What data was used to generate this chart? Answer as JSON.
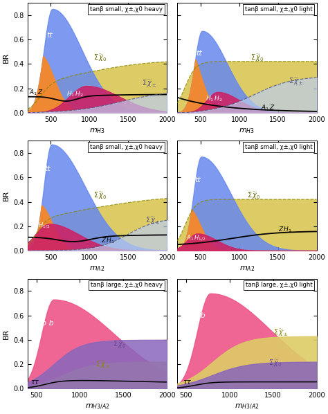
{
  "figsize": [
    4.74,
    5.98
  ],
  "dpi": 100,
  "panels": [
    {
      "title": "tanβ small, χ±,χ0 heavy",
      "xlabel": "m_{H3}",
      "xlim": [
        200,
        2000
      ],
      "ylim": [
        0,
        0.9
      ],
      "yticks": [
        0,
        0.2,
        0.4,
        0.6,
        0.8
      ],
      "xticks": [
        500,
        1000,
        1500,
        2000
      ],
      "scenario": "top_left"
    },
    {
      "title": "tanβ small, χ±,χ0 light",
      "xlabel": "m_{H3}",
      "xlim": [
        200,
        2000
      ],
      "ylim": [
        0,
        0.9
      ],
      "yticks": [
        0,
        0.2,
        0.4,
        0.6,
        0.8
      ],
      "xticks": [
        500,
        1000,
        1500,
        2000
      ],
      "scenario": "top_right"
    },
    {
      "title": "tanβ small, χ±,χ0 heavy",
      "xlabel": "m_{A2}",
      "xlim": [
        200,
        2000
      ],
      "ylim": [
        0,
        0.9
      ],
      "yticks": [
        0,
        0.2,
        0.4,
        0.6,
        0.8
      ],
      "xticks": [
        500,
        1000,
        1500,
        2000
      ],
      "scenario": "mid_left"
    },
    {
      "title": "tanβ small, χ±,χ0 light",
      "xlabel": "m_{A2}",
      "xlim": [
        200,
        2000
      ],
      "ylim": [
        0,
        0.9
      ],
      "yticks": [
        0,
        0.2,
        0.4,
        0.6,
        0.8
      ],
      "xticks": [
        500,
        1000,
        1500,
        2000
      ],
      "scenario": "mid_right"
    },
    {
      "title": "tanβ large, χ±,χ0 heavy",
      "xlabel": "m_{H3/A2}",
      "xlim": [
        400,
        2000
      ],
      "ylim": [
        0,
        0.9
      ],
      "yticks": [
        0,
        0.2,
        0.4,
        0.6,
        0.8
      ],
      "xticks": [
        500,
        1000,
        1500,
        2000
      ],
      "scenario": "bot_left"
    },
    {
      "title": "tanβ large, χ±,χ0 light",
      "xlabel": "m_{H3/A2}",
      "xlim": [
        400,
        2000
      ],
      "ylim": [
        0,
        0.9
      ],
      "yticks": [
        0,
        0.2,
        0.4,
        0.6,
        0.8
      ],
      "xticks": [
        500,
        1000,
        1500,
        2000
      ],
      "scenario": "bot_right"
    }
  ],
  "colors": {
    "tt": "#6688ee",
    "orange": "#ee8833",
    "pink": "#cc2266",
    "yellow": "#ddcc66",
    "blue_bg": "#8899dd",
    "purple": "#8866bb",
    "gold": "#ccaa44",
    "bb": "#ee5588"
  }
}
